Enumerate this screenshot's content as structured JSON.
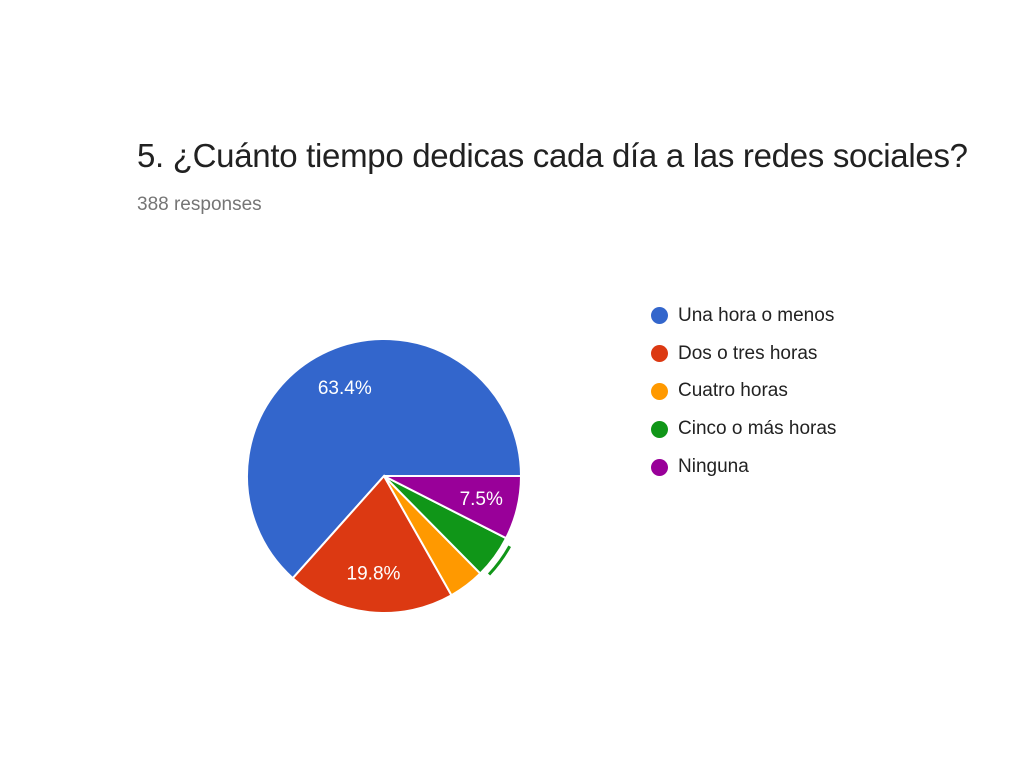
{
  "chart_data": {
    "type": "pie",
    "title": "5. ¿Cuánto tiempo dedicas cada día a las redes sociales?",
    "subtitle": "388 responses",
    "categories": [
      "Una hora o menos",
      "Dos o tres horas",
      "Cuatro horas",
      "Cinco o más horas",
      "Ninguna"
    ],
    "values": [
      63.4,
      19.8,
      4.2,
      5.1,
      7.5
    ],
    "data_labels": [
      "63.4%",
      "19.8%",
      "",
      "",
      "7.5%"
    ],
    "colors": [
      "#3366cc",
      "#dc3912",
      "#ff9900",
      "#109618",
      "#990099"
    ],
    "highlighted_slice": "Cinco o más horas",
    "legend_position": "right"
  }
}
